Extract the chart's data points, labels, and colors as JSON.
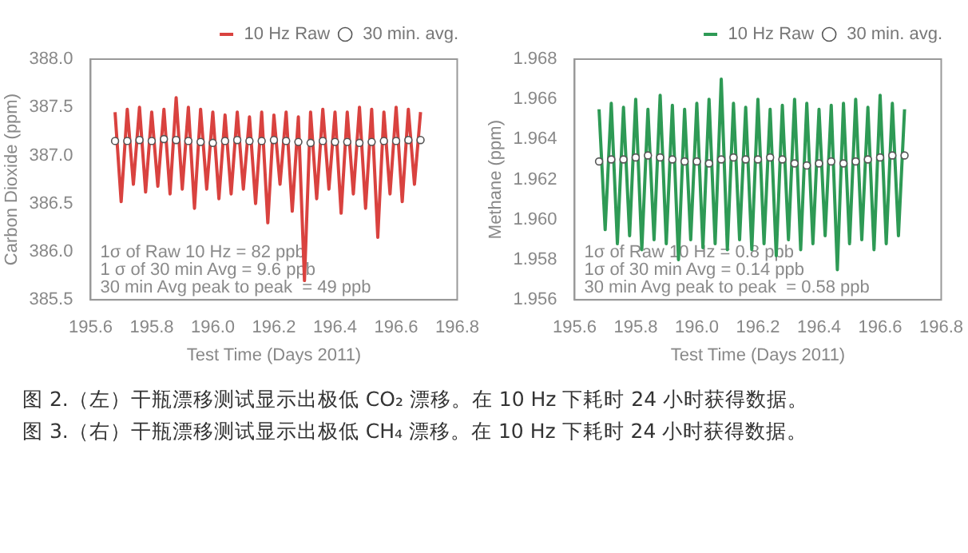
{
  "chart_data": [
    {
      "type": "line",
      "xlabel": "Test Time (Days 2011)",
      "ylabel": "Carbon Dioxide (ppm)",
      "xlim": [
        195.6,
        196.8
      ],
      "xticks": [
        195.6,
        195.8,
        {
          "value": 196.0,
          "label": "196.0"
        },
        196.2,
        196.4,
        196.6,
        196.8
      ],
      "ylim": [
        385.5,
        388.0
      ],
      "yticks": [
        385.5,
        {
          "value": 386.0,
          "label": "386.0"
        },
        386.5,
        {
          "value": 387.0,
          "label": "387.0"
        },
        387.5,
        {
          "value": 388.0,
          "label": "388.0"
        }
      ],
      "grid": false,
      "legend": "top right",
      "series": [
        {
          "name": "10 Hz Raw",
          "type": "line",
          "marker": "none",
          "color": "#d9423f",
          "x": [
            195.68,
            195.7,
            195.72,
            195.74,
            195.76,
            195.78,
            195.8,
            195.82,
            195.84,
            195.86,
            195.88,
            195.9,
            195.92,
            195.94,
            195.96,
            195.98,
            196.0,
            196.02,
            196.04,
            196.06,
            196.08,
            196.1,
            196.12,
            196.14,
            196.16,
            196.18,
            196.2,
            196.22,
            196.24,
            196.26,
            196.28,
            196.3,
            196.32,
            196.34,
            196.36,
            196.38,
            196.4,
            196.42,
            196.44,
            196.46,
            196.48,
            196.5,
            196.52,
            196.54,
            196.56,
            196.58,
            196.6,
            196.62,
            196.64,
            196.66,
            196.68
          ],
          "values": [
            387.45,
            386.52,
            387.48,
            386.7,
            387.5,
            386.62,
            387.45,
            386.68,
            387.48,
            386.6,
            387.6,
            386.65,
            387.5,
            386.45,
            387.48,
            386.65,
            387.45,
            386.55,
            387.42,
            386.6,
            387.45,
            386.65,
            387.4,
            386.5,
            387.45,
            386.3,
            387.42,
            386.7,
            387.45,
            386.42,
            387.4,
            385.7,
            387.45,
            386.55,
            387.48,
            386.65,
            387.45,
            386.4,
            387.45,
            386.6,
            387.5,
            386.45,
            387.48,
            386.15,
            387.45,
            386.6,
            387.5,
            386.52,
            387.48,
            386.7,
            387.45
          ]
        },
        {
          "name": "30 min. avg.",
          "type": "scatter",
          "marker": "circle",
          "color": "#ffffff",
          "x": [
            195.68,
            195.72,
            195.76,
            195.8,
            195.84,
            195.88,
            195.92,
            195.96,
            196.0,
            196.04,
            196.08,
            196.12,
            196.16,
            196.2,
            196.24,
            196.28,
            196.32,
            196.36,
            196.4,
            196.44,
            196.48,
            196.52,
            196.56,
            196.6,
            196.64,
            196.68
          ],
          "values": [
            387.15,
            387.15,
            387.16,
            387.15,
            387.17,
            387.16,
            387.15,
            387.14,
            387.13,
            387.15,
            387.16,
            387.15,
            387.15,
            387.16,
            387.15,
            387.14,
            387.13,
            387.15,
            387.14,
            387.14,
            387.13,
            387.14,
            387.15,
            387.15,
            387.16,
            387.16
          ]
        }
      ],
      "annotations": [
        "1σ of Raw 10 Hz = 82 ppb",
        "1 σ of 30 min Avg = 9.6 ppb",
        "30 min Avg peak to peak  = 49 ppb",
        "图 2.（左）干瓶漂移测试显示出极低 CO₂ 漂移。在 10 Hz 下耗时 24 小时获得数据。"
      ]
    },
    {
      "type": "line",
      "xlabel": "Test Time (Days 2011)",
      "ylabel": "Methane (ppm)",
      "xlim": [
        195.6,
        196.8
      ],
      "xticks": [
        195.6,
        195.8,
        {
          "value": 196.0,
          "label": "196.0"
        },
        196.2,
        196.4,
        196.6,
        196.8
      ],
      "ylim": [
        1.956,
        1.968
      ],
      "yticks": [
        1.956,
        1.958,
        {
          "value": 1.96,
          "label": "1.960"
        },
        1.962,
        1.964,
        1.966,
        1.968
      ],
      "grid": false,
      "legend": "top right",
      "series": [
        {
          "name": "10 Hz Raw",
          "type": "line",
          "marker": "none",
          "color": "#2e9a55",
          "x": [
            195.68,
            195.7,
            195.72,
            195.74,
            195.76,
            195.78,
            195.8,
            195.82,
            195.84,
            195.86,
            195.88,
            195.9,
            195.92,
            195.94,
            195.96,
            195.98,
            196.0,
            196.02,
            196.04,
            196.06,
            196.08,
            196.1,
            196.12,
            196.14,
            196.16,
            196.18,
            196.2,
            196.22,
            196.24,
            196.26,
            196.28,
            196.3,
            196.32,
            196.34,
            196.36,
            196.38,
            196.4,
            196.42,
            196.44,
            196.46,
            196.48,
            196.5,
            196.52,
            196.54,
            196.56,
            196.58,
            196.6,
            196.62,
            196.64,
            196.66,
            196.68
          ],
          "values": [
            1.9655,
            1.9595,
            1.9658,
            1.9588,
            1.9656,
            1.9592,
            1.966,
            1.9585,
            1.9655,
            1.959,
            1.9662,
            1.9588,
            1.9657,
            1.958,
            1.9655,
            1.959,
            1.9658,
            1.9586,
            1.966,
            1.9588,
            1.967,
            1.9585,
            1.9658,
            1.959,
            1.9656,
            1.9585,
            1.966,
            1.9588,
            1.9655,
            1.9582,
            1.9657,
            1.959,
            1.966,
            1.9585,
            1.9658,
            1.9588,
            1.9655,
            1.9592,
            1.9657,
            1.9575,
            1.9658,
            1.9588,
            1.966,
            1.959,
            1.9656,
            1.9585,
            1.9662,
            1.9588,
            1.9658,
            1.9592,
            1.9655
          ]
        },
        {
          "name": "30 min. avg.",
          "type": "scatter",
          "marker": "circle",
          "color": "#ffffff",
          "x": [
            195.68,
            195.72,
            195.76,
            195.8,
            195.84,
            195.88,
            195.92,
            195.96,
            196.0,
            196.04,
            196.08,
            196.12,
            196.16,
            196.2,
            196.24,
            196.28,
            196.32,
            196.36,
            196.4,
            196.44,
            196.48,
            196.52,
            196.56,
            196.6,
            196.64,
            196.68
          ],
          "values": [
            1.9629,
            1.963,
            1.963,
            1.9631,
            1.9632,
            1.9631,
            1.963,
            1.9629,
            1.9629,
            1.9628,
            1.963,
            1.9631,
            1.963,
            1.963,
            1.9631,
            1.963,
            1.9628,
            1.9627,
            1.9628,
            1.9629,
            1.9628,
            1.9629,
            1.963,
            1.9631,
            1.9632,
            1.9632
          ]
        }
      ],
      "annotations": [
        "1σ of Raw 10 Hz = 0.8 ppb",
        "1σ of 30 min Avg = 0.14 ppb",
        "30 min Avg peak to peak  = 0.58 ppb",
        "图 3.（右）干瓶漂移测试显示出极低 CH₄ 漂移。在 10 Hz 下耗时 24 小时获得数据。"
      ]
    }
  ]
}
